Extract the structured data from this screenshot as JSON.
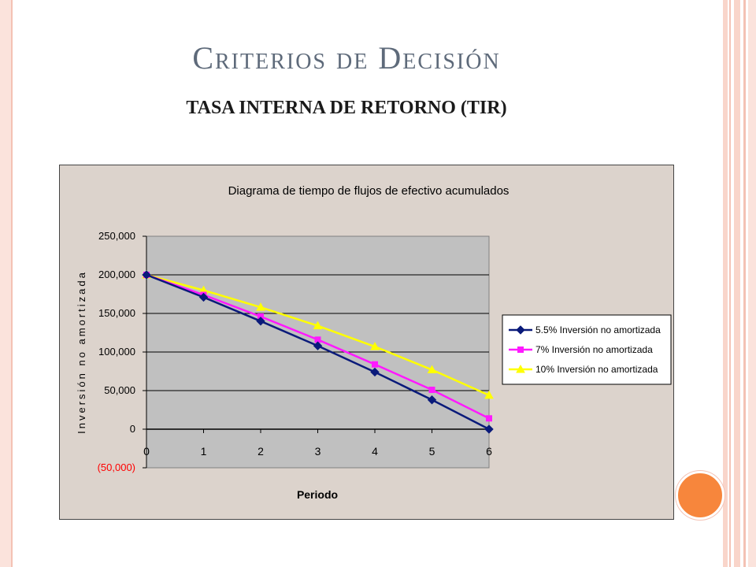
{
  "slide": {
    "title": "Criterios de Decisión",
    "subtitle": "TASA INTERNA DE RETORNO (TIR)"
  },
  "colors": {
    "plot_area": "#c0c0c0",
    "chart_bg": "#dcd3cc",
    "series": [
      "#0a1a7a",
      "#ff19ff",
      "#ffff00"
    ],
    "negative_tick": "#ff0000",
    "accent_dot": "#f7863c"
  },
  "chart_data": {
    "type": "line",
    "title": "Diagrama de tiempo de flujos de efectivo acumulados",
    "xlabel": "Periodo",
    "ylabel": "Inversión no amortizada",
    "x": [
      0,
      1,
      2,
      3,
      4,
      5,
      6
    ],
    "x_tick_labels": [
      "0",
      "1",
      "2",
      "3",
      "4",
      "5",
      "6"
    ],
    "ylim": [
      -50000,
      250000
    ],
    "y_ticks": [
      250000,
      200000,
      150000,
      100000,
      50000,
      0,
      -50000
    ],
    "y_tick_labels": [
      "250,000",
      "200,000",
      "150,000",
      "100,000",
      "50,000",
      "0",
      "(50,000)"
    ],
    "grid": "horizontal",
    "legend_position": "right",
    "series": [
      {
        "name": "5.5% Inversión no amortizada",
        "marker": "diamond",
        "values": [
          200000,
          171000,
          140000,
          108000,
          74000,
          38000,
          0
        ]
      },
      {
        "name": "7% Inversión no amortizada",
        "marker": "square",
        "values": [
          200000,
          174000,
          146000,
          116000,
          84000,
          51000,
          14000
        ]
      },
      {
        "name": "10% Inversión no amortizada",
        "marker": "triangle",
        "values": [
          200000,
          180000,
          158000,
          134000,
          107000,
          77000,
          44000
        ]
      }
    ]
  }
}
